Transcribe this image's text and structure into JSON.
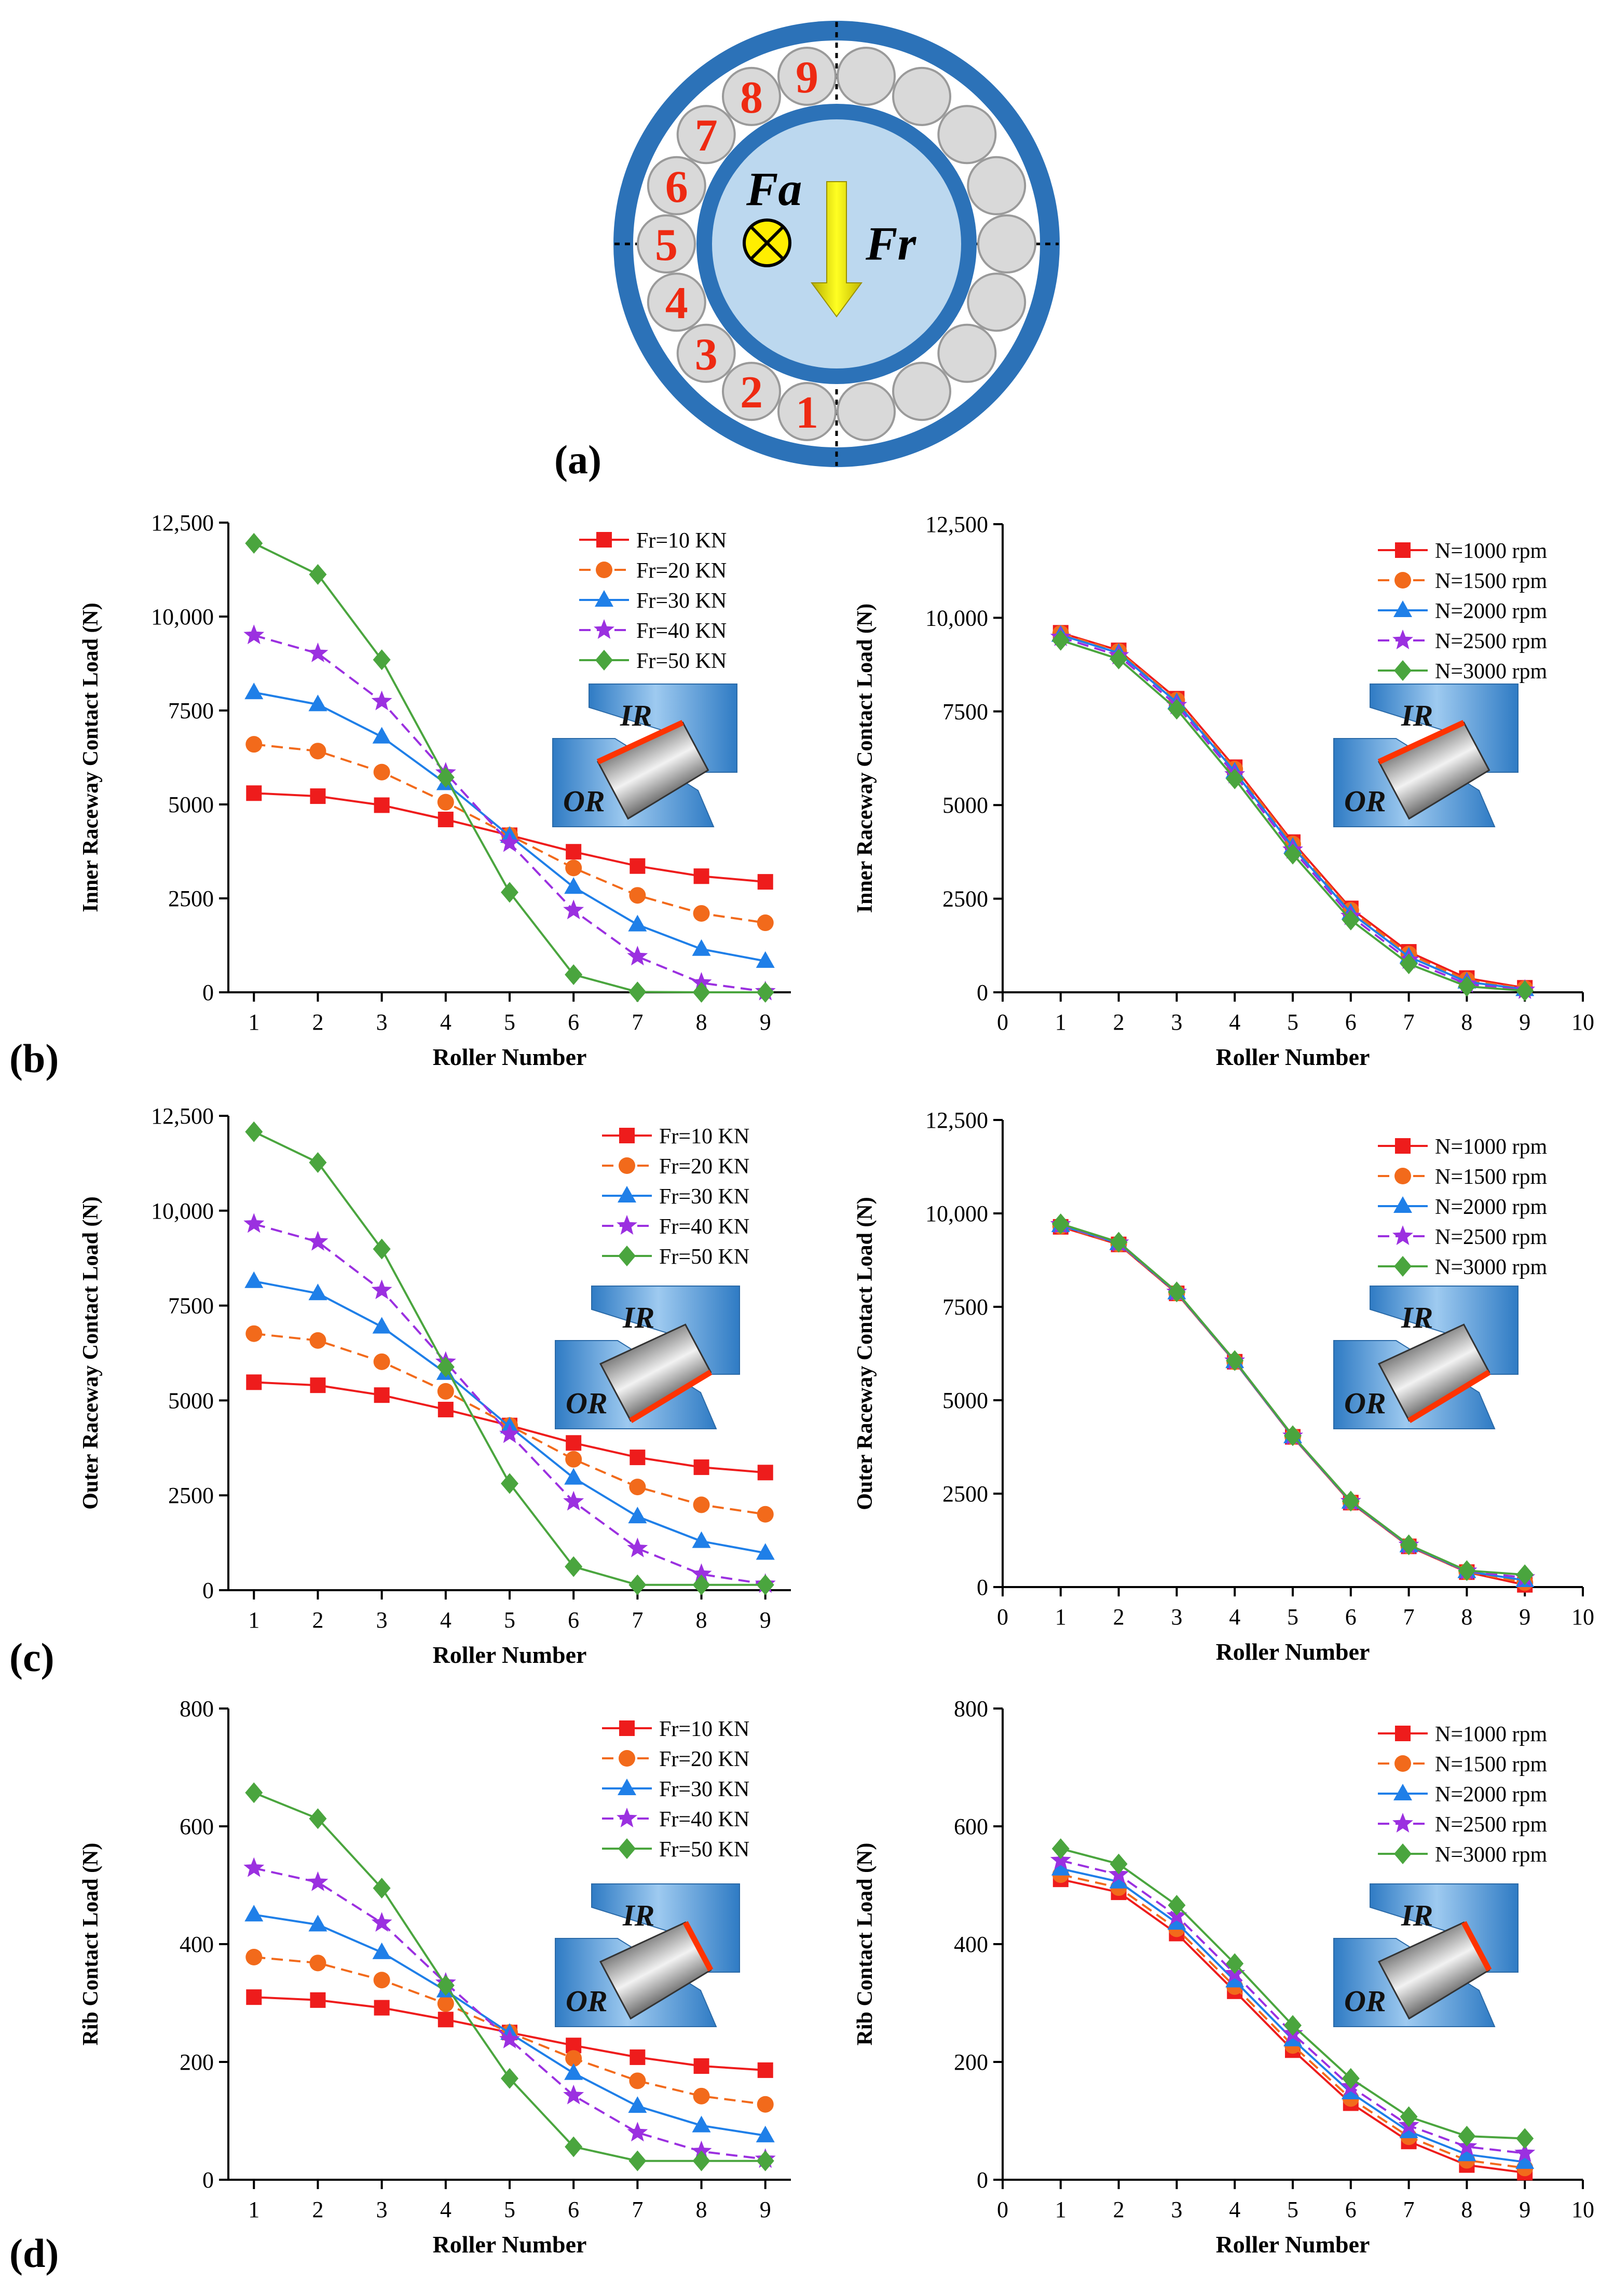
{
  "figure": {
    "panel_labels": [
      "(a)",
      "(b)",
      "(c)",
      "(d)"
    ],
    "diagram": {
      "roller_numbers": [
        "1",
        "2",
        "3",
        "4",
        "5",
        "6",
        "7",
        "8",
        "9"
      ],
      "axial_load_label": "Fa",
      "radial_load_label": "Fr"
    },
    "inset_labels": {
      "inner": "IR",
      "outer": "OR"
    }
  },
  "chart_data": [
    {
      "id": "b-left",
      "type": "line",
      "panel": "(b)",
      "xlabel": "Roller Number",
      "ylabel": "Inner Raceway Contact Load (N)",
      "xlim": [
        0.6,
        9.4
      ],
      "ylim": [
        0,
        12500
      ],
      "xticks": [
        1,
        2,
        3,
        4,
        5,
        6,
        7,
        8,
        9
      ],
      "xtick_labels": [
        "1",
        "2",
        "3",
        "4",
        "5",
        "6",
        "7",
        "8",
        "9"
      ],
      "yticks": [
        0,
        2500,
        5000,
        7500,
        10000,
        12500
      ],
      "ytick_labels": [
        "0",
        "2500",
        "5000",
        "7500",
        "10,000",
        "12,500"
      ],
      "contact": "inner",
      "legend_position": "top-right",
      "x": [
        1,
        2,
        3,
        4,
        5,
        6,
        7,
        8,
        9
      ],
      "series": [
        {
          "name": "Fr=10 KN",
          "color": "#ee1c1c",
          "marker": "square",
          "dash": "solid",
          "values": [
            5300,
            5220,
            4980,
            4600,
            4180,
            3740,
            3360,
            3090,
            2940
          ]
        },
        {
          "name": "Fr=20 KN",
          "color": "#f26a1b",
          "marker": "circle",
          "dash": "dash",
          "values": [
            6600,
            6420,
            5860,
            5060,
            4180,
            3310,
            2580,
            2100,
            1850
          ]
        },
        {
          "name": "Fr=30 KN",
          "color": "#1f7fe8",
          "marker": "triangle",
          "dash": "solid",
          "values": [
            7980,
            7660,
            6800,
            5560,
            4160,
            2800,
            1800,
            1150,
            830
          ]
        },
        {
          "name": "Fr=40 KN",
          "color": "#9b30e0",
          "marker": "star",
          "dash": "dash",
          "values": [
            9500,
            9020,
            7740,
            5840,
            3970,
            2180,
            950,
            250,
            20
          ]
        },
        {
          "name": "Fr=50 KN",
          "color": "#4aa53e",
          "marker": "diamond",
          "dash": "solid",
          "values": [
            11950,
            11120,
            8850,
            5720,
            2660,
            470,
            10,
            0,
            0
          ]
        }
      ]
    },
    {
      "id": "b-right",
      "type": "line",
      "panel": "(b)",
      "xlabel": "Roller Number",
      "ylabel": "Inner Raceway Contact Load (N)",
      "xlim": [
        0,
        10
      ],
      "ylim": [
        0,
        12500
      ],
      "xticks": [
        0,
        1,
        2,
        3,
        4,
        5,
        6,
        7,
        8,
        9,
        10
      ],
      "xtick_labels": [
        "0",
        "1",
        "2",
        "3",
        "4",
        "5",
        "6",
        "7",
        "8",
        "9",
        "10"
      ],
      "yticks": [
        0,
        2500,
        5000,
        7500,
        10000,
        12500
      ],
      "ytick_labels": [
        "0",
        "2500",
        "5000",
        "7500",
        "10,000",
        "12,500"
      ],
      "contact": "inner",
      "legend_position": "top-right",
      "x": [
        1,
        2,
        3,
        4,
        5,
        6,
        7,
        8,
        9
      ],
      "series": [
        {
          "name": "N=1000 rpm",
          "color": "#ee1c1c",
          "marker": "square",
          "dash": "solid",
          "values": [
            9600,
            9130,
            7840,
            6010,
            4010,
            2240,
            1080,
            380,
            120
          ]
        },
        {
          "name": "N=1500 rpm",
          "color": "#f26a1b",
          "marker": "circle",
          "dash": "dash",
          "values": [
            9580,
            9100,
            7800,
            5960,
            3960,
            2190,
            1020,
            330,
            100
          ]
        },
        {
          "name": "N=2000 rpm",
          "color": "#1f7fe8",
          "marker": "triangle",
          "dash": "solid",
          "values": [
            9540,
            9060,
            7740,
            5890,
            3880,
            2120,
            950,
            280,
            80
          ]
        },
        {
          "name": "N=2500 rpm",
          "color": "#9b30e0",
          "marker": "star",
          "dash": "dash",
          "values": [
            9480,
            8990,
            7660,
            5810,
            3800,
            2030,
            860,
            220,
            60
          ]
        },
        {
          "name": "N=3000 rpm",
          "color": "#4aa53e",
          "marker": "diamond",
          "dash": "solid",
          "values": [
            9400,
            8900,
            7560,
            5700,
            3690,
            1930,
            760,
            160,
            40
          ]
        }
      ]
    },
    {
      "id": "c-left",
      "type": "line",
      "panel": "(c)",
      "xlabel": "Roller Number",
      "ylabel": "Outer Raceway Contact Load (N)",
      "xlim": [
        0.6,
        9.4
      ],
      "ylim": [
        0,
        12500
      ],
      "xticks": [
        1,
        2,
        3,
        4,
        5,
        6,
        7,
        8,
        9
      ],
      "xtick_labels": [
        "1",
        "2",
        "3",
        "4",
        "5",
        "6",
        "7",
        "8",
        "9"
      ],
      "yticks": [
        0,
        2500,
        5000,
        7500,
        10000,
        12500
      ],
      "ytick_labels": [
        "0",
        "2500",
        "5000",
        "7500",
        "10,000",
        "12,500"
      ],
      "contact": "outer",
      "legend_position": "top-right",
      "x": [
        1,
        2,
        3,
        4,
        5,
        6,
        7,
        8,
        9
      ],
      "series": [
        {
          "name": "Fr=10 KN",
          "color": "#ee1c1c",
          "marker": "square",
          "dash": "solid",
          "values": [
            5480,
            5400,
            5140,
            4760,
            4340,
            3880,
            3500,
            3240,
            3100
          ]
        },
        {
          "name": "Fr=20 KN",
          "color": "#f26a1b",
          "marker": "circle",
          "dash": "dash",
          "values": [
            6760,
            6580,
            6020,
            5240,
            4340,
            3450,
            2720,
            2250,
            2000
          ]
        },
        {
          "name": "Fr=30 KN",
          "color": "#1f7fe8",
          "marker": "triangle",
          "dash": "solid",
          "values": [
            8140,
            7820,
            6940,
            5720,
            4310,
            2960,
            1940,
            1290,
            980
          ]
        },
        {
          "name": "Fr=40 KN",
          "color": "#9b30e0",
          "marker": "star",
          "dash": "dash",
          "values": [
            9650,
            9180,
            7900,
            6010,
            4110,
            2330,
            1100,
            420,
            160
          ]
        },
        {
          "name": "Fr=50 KN",
          "color": "#4aa53e",
          "marker": "diamond",
          "dash": "solid",
          "values": [
            12080,
            11270,
            8990,
            5880,
            2810,
            620,
            140,
            140,
            140
          ]
        }
      ]
    },
    {
      "id": "c-right",
      "type": "line",
      "panel": "(c)",
      "xlabel": "Roller Number",
      "ylabel": "Outer Raceway Contact Load (N)",
      "xlim": [
        0,
        10
      ],
      "ylim": [
        0,
        12500
      ],
      "xticks": [
        0,
        1,
        2,
        3,
        4,
        5,
        6,
        7,
        8,
        9,
        10
      ],
      "xtick_labels": [
        "0",
        "1",
        "2",
        "3",
        "4",
        "5",
        "6",
        "7",
        "8",
        "9",
        "10"
      ],
      "yticks": [
        0,
        2500,
        5000,
        7500,
        10000,
        12500
      ],
      "ytick_labels": [
        "0",
        "2500",
        "5000",
        "7500",
        "10,000",
        "12,500"
      ],
      "contact": "outer",
      "legend_position": "top-right",
      "x": [
        1,
        2,
        3,
        4,
        5,
        6,
        7,
        8,
        9
      ],
      "series": [
        {
          "name": "N=1000 rpm",
          "color": "#ee1c1c",
          "marker": "square",
          "dash": "solid",
          "values": [
            9640,
            9170,
            7860,
            6030,
            4020,
            2260,
            1090,
            400,
            60
          ]
        },
        {
          "name": "N=1500 rpm",
          "color": "#f26a1b",
          "marker": "circle",
          "dash": "dash",
          "values": [
            9660,
            9180,
            7870,
            6030,
            4030,
            2270,
            1100,
            410,
            120
          ]
        },
        {
          "name": "N=2000 rpm",
          "color": "#1f7fe8",
          "marker": "triangle",
          "dash": "solid",
          "values": [
            9680,
            9200,
            7880,
            6040,
            4030,
            2280,
            1110,
            420,
            180
          ]
        },
        {
          "name": "N=2500 rpm",
          "color": "#9b30e0",
          "marker": "star",
          "dash": "dash",
          "values": [
            9700,
            9210,
            7890,
            6050,
            4040,
            2290,
            1120,
            430,
            250
          ]
        },
        {
          "name": "N=3000 rpm",
          "color": "#4aa53e",
          "marker": "diamond",
          "dash": "solid",
          "values": [
            9720,
            9230,
            7900,
            6060,
            4050,
            2300,
            1130,
            440,
            330
          ]
        }
      ]
    },
    {
      "id": "d-left",
      "type": "line",
      "panel": "(d)",
      "xlabel": "Roller Number",
      "ylabel": "Rib Contact Load (N)",
      "xlim": [
        0.6,
        9.4
      ],
      "ylim": [
        0,
        800
      ],
      "xticks": [
        1,
        2,
        3,
        4,
        5,
        6,
        7,
        8,
        9
      ],
      "xtick_labels": [
        "1",
        "2",
        "3",
        "4",
        "5",
        "6",
        "7",
        "8",
        "9"
      ],
      "yticks": [
        0,
        200,
        400,
        600,
        800
      ],
      "ytick_labels": [
        "0",
        "200",
        "400",
        "600",
        "800"
      ],
      "contact": "rib",
      "legend_position": "top-right",
      "x": [
        1,
        2,
        3,
        4,
        5,
        6,
        7,
        8,
        9
      ],
      "series": [
        {
          "name": "Fr=10 KN",
          "color": "#ee1c1c",
          "marker": "square",
          "dash": "solid",
          "values": [
            310,
            305,
            292,
            272,
            250,
            228,
            208,
            193,
            186
          ]
        },
        {
          "name": "Fr=20 KN",
          "color": "#f26a1b",
          "marker": "circle",
          "dash": "dash",
          "values": [
            378,
            368,
            339,
            299,
            250,
            206,
            168,
            142,
            128
          ]
        },
        {
          "name": "Fr=30 KN",
          "color": "#1f7fe8",
          "marker": "triangle",
          "dash": "solid",
          "values": [
            450,
            433,
            386,
            321,
            249,
            181,
            125,
            92,
            75
          ]
        },
        {
          "name": "Fr=40 KN",
          "color": "#9b30e0",
          "marker": "star",
          "dash": "dash",
          "values": [
            529,
            505,
            436,
            334,
            238,
            143,
            80,
            48,
            35
          ]
        },
        {
          "name": "Fr=50 KN",
          "color": "#4aa53e",
          "marker": "diamond",
          "dash": "solid",
          "values": [
            657,
            613,
            495,
            330,
            172,
            56,
            32,
            32,
            32
          ]
        }
      ]
    },
    {
      "id": "d-right",
      "type": "line",
      "panel": "(d)",
      "xlabel": "Roller Number",
      "ylabel": "Rib Contact Load (N)",
      "xlim": [
        0,
        10
      ],
      "ylim": [
        0,
        800
      ],
      "xticks": [
        0,
        1,
        2,
        3,
        4,
        5,
        6,
        7,
        8,
        9,
        10
      ],
      "xtick_labels": [
        "0",
        "1",
        "2",
        "3",
        "4",
        "5",
        "6",
        "7",
        "8",
        "9",
        "10"
      ],
      "yticks": [
        0,
        200,
        400,
        600,
        800
      ],
      "ytick_labels": [
        "0",
        "200",
        "400",
        "600",
        "800"
      ],
      "contact": "rib",
      "legend_position": "top-right",
      "x": [
        1,
        2,
        3,
        4,
        5,
        6,
        7,
        8,
        9
      ],
      "series": [
        {
          "name": "N=1000 rpm",
          "color": "#ee1c1c",
          "marker": "square",
          "dash": "solid",
          "values": [
            510,
            488,
            418,
            320,
            220,
            130,
            65,
            25,
            12
          ]
        },
        {
          "name": "N=1500 rpm",
          "color": "#f26a1b",
          "marker": "circle",
          "dash": "dash",
          "values": [
            518,
            496,
            426,
            328,
            228,
            138,
            73,
            33,
            20
          ]
        },
        {
          "name": "N=2000 rpm",
          "color": "#1f7fe8",
          "marker": "triangle",
          "dash": "solid",
          "values": [
            528,
            506,
            436,
            338,
            238,
            148,
            82,
            43,
            30
          ]
        },
        {
          "name": "N=2500 rpm",
          "color": "#9b30e0",
          "marker": "star",
          "dash": "dash",
          "values": [
            542,
            518,
            448,
            350,
            248,
            158,
            92,
            56,
            45
          ]
        },
        {
          "name": "N=3000 rpm",
          "color": "#4aa53e",
          "marker": "diamond",
          "dash": "solid",
          "values": [
            562,
            536,
            466,
            367,
            262,
            172,
            107,
            74,
            70
          ]
        }
      ]
    }
  ]
}
